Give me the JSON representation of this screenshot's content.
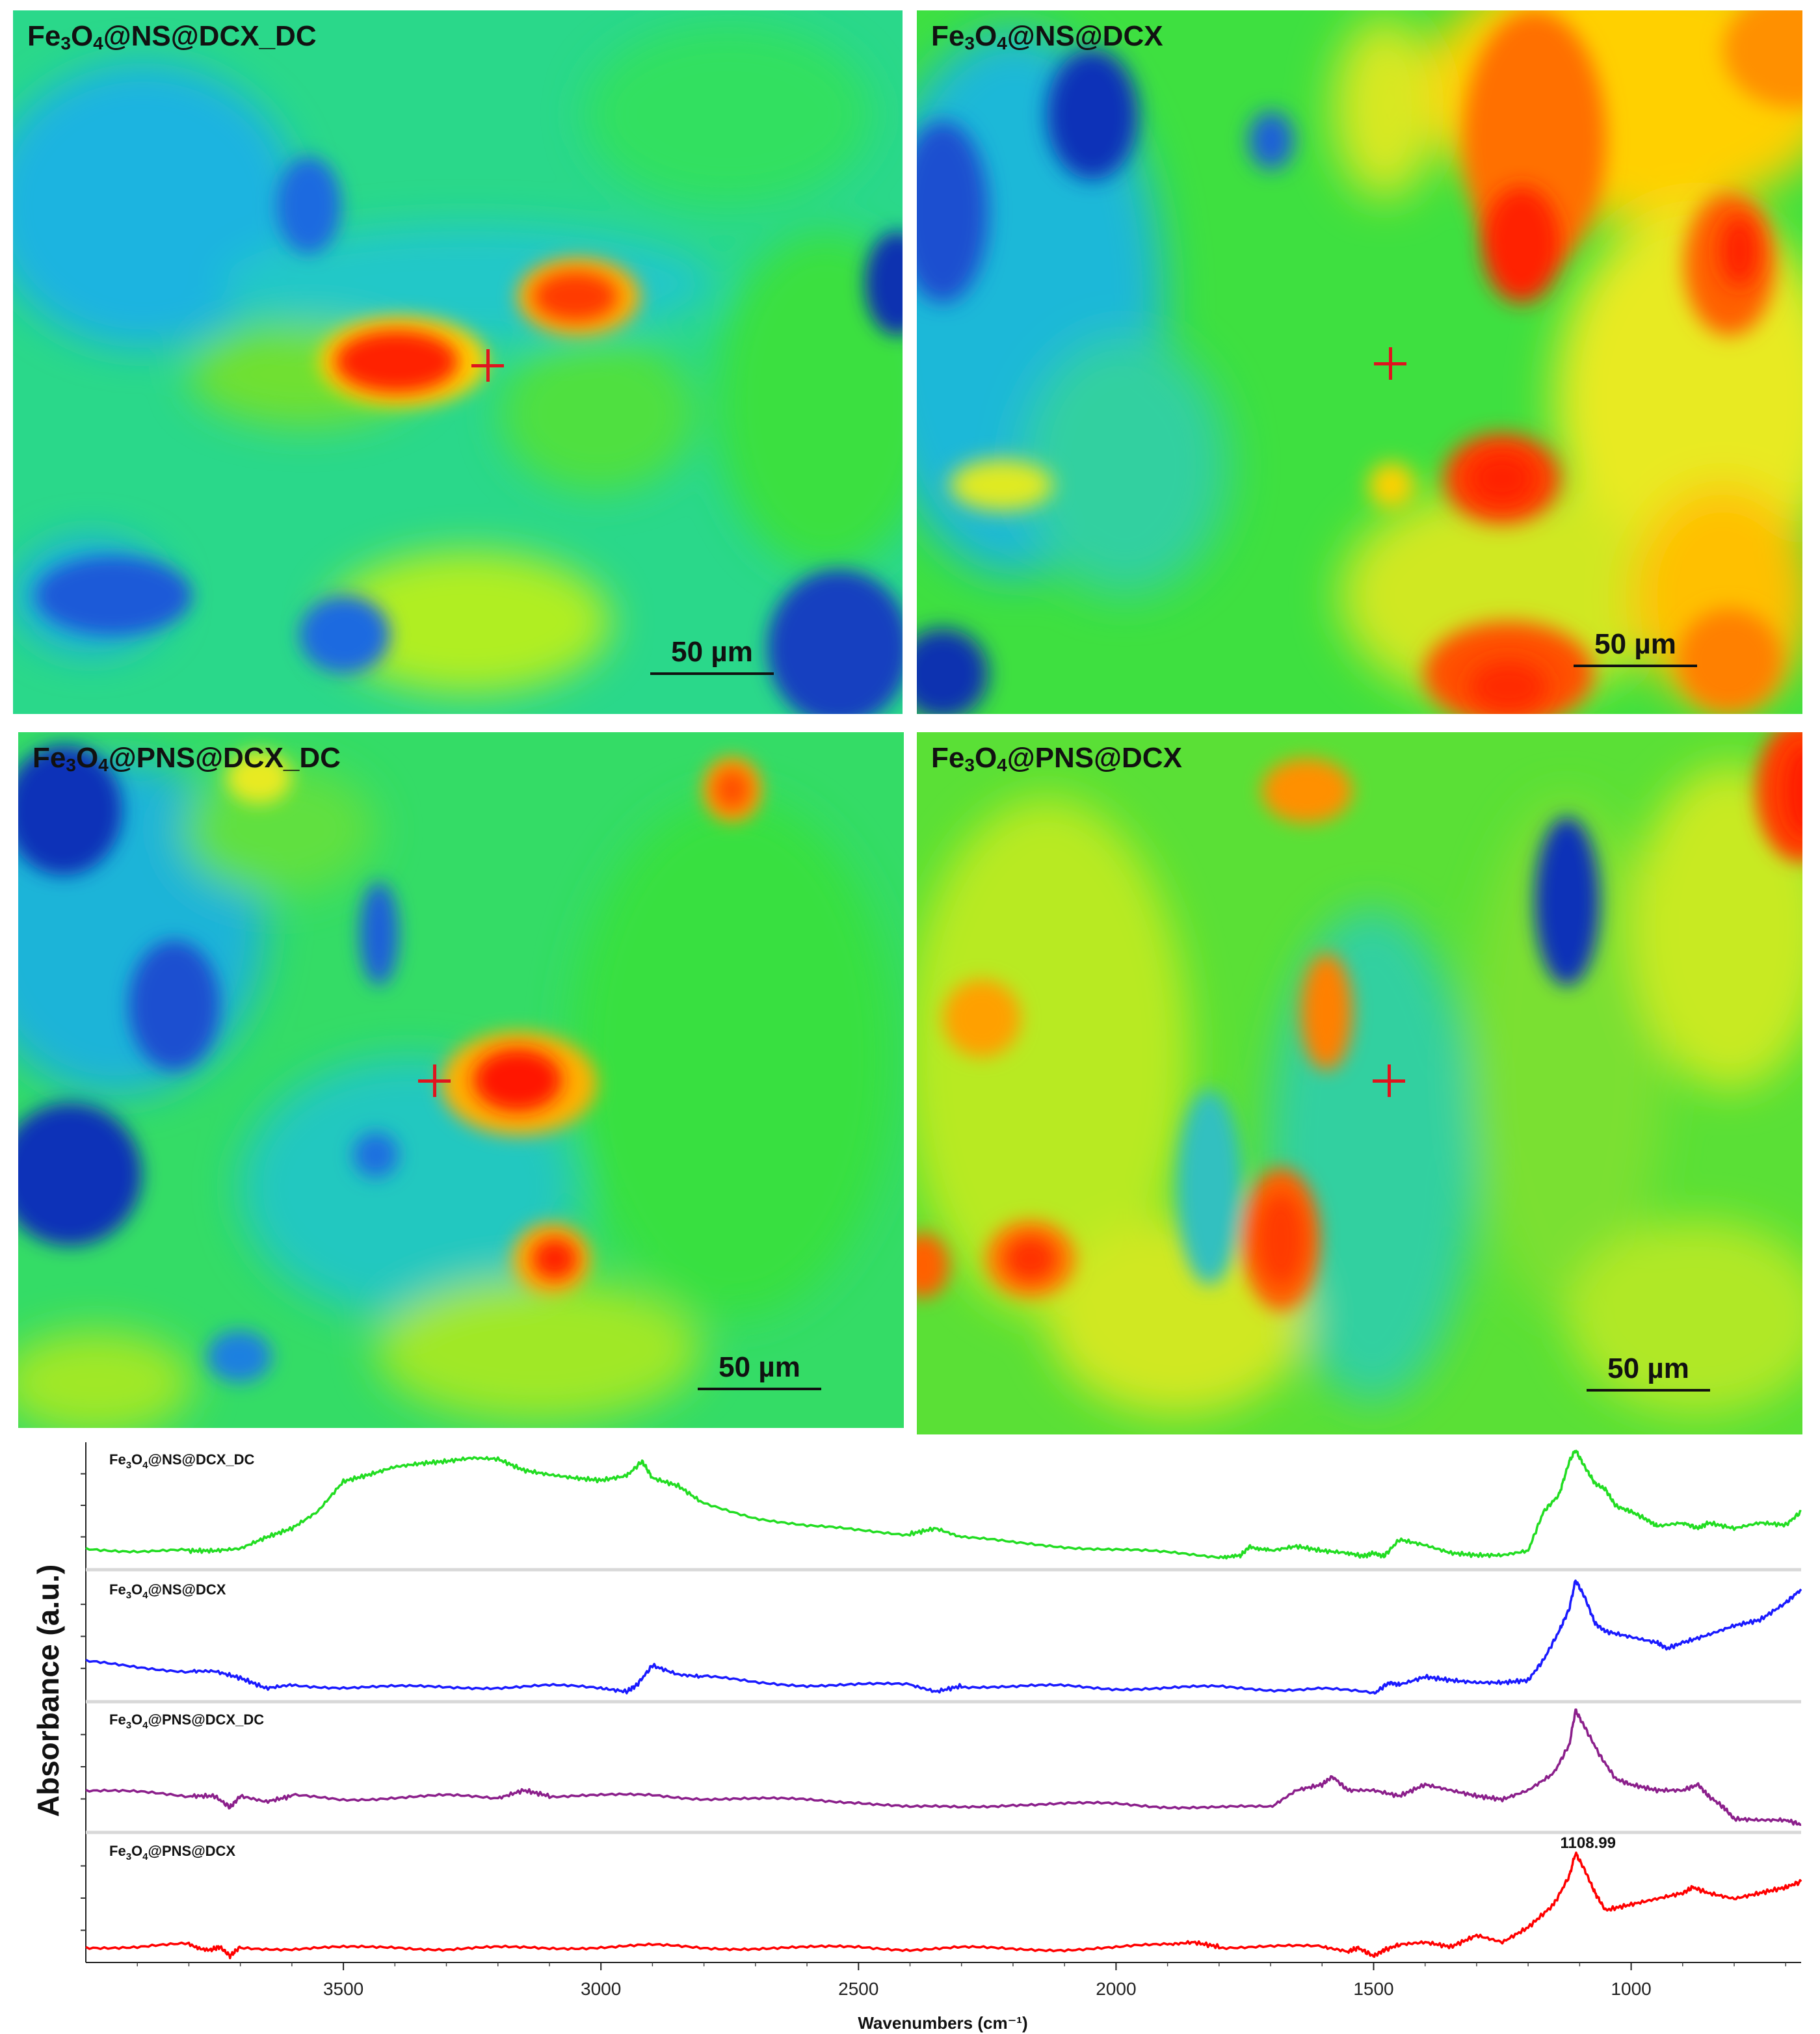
{
  "maps": [
    {
      "id": "tl",
      "label_main": "Fe",
      "label_sub1": "3",
      "label_mid": "O",
      "label_sub2": "4",
      "label_rest": "@NS@DCX_DC",
      "scale": "50 µm"
    },
    {
      "id": "tr",
      "label_main": "Fe",
      "label_sub1": "3",
      "label_mid": "O",
      "label_sub2": "4",
      "label_rest": "@NS@DCX",
      "scale": "50 µm"
    },
    {
      "id": "bl",
      "label_main": "Fe",
      "label_sub1": "3",
      "label_mid": "O",
      "label_sub2": "4",
      "label_rest": "@PNS@DCX_DC",
      "scale": "50 µm"
    },
    {
      "id": "br",
      "label_main": "Fe",
      "label_sub1": "3",
      "label_mid": "O",
      "label_sub2": "4",
      "label_rest": "@PNS@DCX",
      "scale": "50 µm"
    }
  ],
  "colors": {
    "green": "#22dd22",
    "blue": "#1a1aff",
    "purple": "#8b1f8b",
    "red": "#ff0000"
  },
  "chart_data": {
    "type": "line",
    "xlabel": "Wavenumbers (cm⁻¹)",
    "ylabel": "Absorbance (a.u.)",
    "xlim": [
      4000,
      670
    ],
    "xticks": [
      3500,
      3000,
      2500,
      2000,
      1500,
      1000
    ],
    "peak_annotation": {
      "label": "1108.99",
      "x": 1108.99,
      "series": 3
    },
    "series": [
      {
        "name": "Fe3O4@NS@DCX_DC",
        "name_main": "Fe",
        "name_sub1": "3",
        "name_mid": "O",
        "name_sub2": "4",
        "name_rest": "@NS@DCX_DC",
        "color": "#22dd22",
        "x": [
          4000,
          3900,
          3800,
          3750,
          3700,
          3650,
          3600,
          3550,
          3500,
          3450,
          3400,
          3350,
          3300,
          3250,
          3200,
          3150,
          3100,
          3050,
          3000,
          2950,
          2920,
          2900,
          2850,
          2800,
          2700,
          2600,
          2500,
          2400,
          2350,
          2300,
          2200,
          2100,
          2000,
          1900,
          1800,
          1760,
          1740,
          1700,
          1650,
          1600,
          1550,
          1520,
          1500,
          1480,
          1450,
          1400,
          1350,
          1300,
          1250,
          1200,
          1170,
          1140,
          1120,
          1108,
          1090,
          1070,
          1050,
          1030,
          1000,
          970,
          950,
          900,
          870,
          850,
          800,
          750,
          700,
          670
        ],
        "y": [
          0.12,
          0.1,
          0.1,
          0.1,
          0.12,
          0.22,
          0.3,
          0.45,
          0.72,
          0.78,
          0.85,
          0.88,
          0.9,
          0.93,
          0.92,
          0.82,
          0.78,
          0.75,
          0.73,
          0.77,
          0.9,
          0.75,
          0.68,
          0.52,
          0.4,
          0.32,
          0.28,
          0.25,
          0.3,
          0.22,
          0.17,
          0.14,
          0.11,
          0.08,
          0.05,
          0.05,
          0.14,
          0.1,
          0.14,
          0.1,
          0.08,
          0.05,
          0.08,
          0.05,
          0.2,
          0.15,
          0.08,
          0.06,
          0.06,
          0.1,
          0.45,
          0.6,
          0.9,
          1.0,
          0.85,
          0.7,
          0.65,
          0.5,
          0.45,
          0.38,
          0.32,
          0.35,
          0.3,
          0.35,
          0.3,
          0.35,
          0.33,
          0.45
        ]
      },
      {
        "name": "Fe3O4@NS@DCX",
        "name_main": "Fe",
        "name_sub1": "3",
        "name_mid": "O",
        "name_sub2": "4",
        "name_rest": "@NS@DCX",
        "color": "#1a1aff",
        "x": [
          4000,
          3900,
          3800,
          3750,
          3700,
          3650,
          3600,
          3500,
          3400,
          3300,
          3200,
          3100,
          3000,
          2950,
          2930,
          2900,
          2850,
          2800,
          2700,
          2600,
          2500,
          2400,
          2350,
          2300,
          2200,
          2100,
          2000,
          1900,
          1800,
          1700,
          1600,
          1500,
          1470,
          1450,
          1400,
          1350,
          1300,
          1250,
          1200,
          1170,
          1140,
          1120,
          1108,
          1090,
          1070,
          1050,
          1000,
          950,
          930,
          900,
          850,
          800,
          750,
          700,
          670
        ],
        "y": [
          0.28,
          0.24,
          0.2,
          0.2,
          0.14,
          0.05,
          0.08,
          0.06,
          0.06,
          0.06,
          0.06,
          0.07,
          0.05,
          0.02,
          0.08,
          0.25,
          0.17,
          0.15,
          0.1,
          0.08,
          0.08,
          0.08,
          0.02,
          0.07,
          0.06,
          0.07,
          0.05,
          0.05,
          0.06,
          0.04,
          0.05,
          0.0,
          0.1,
          0.08,
          0.15,
          0.12,
          0.1,
          0.1,
          0.12,
          0.3,
          0.55,
          0.75,
          1.0,
          0.85,
          0.62,
          0.55,
          0.5,
          0.45,
          0.4,
          0.45,
          0.52,
          0.6,
          0.65,
          0.8,
          0.92
        ]
      },
      {
        "name": "Fe3O4@PNS@DCX_DC",
        "name_main": "Fe",
        "name_sub1": "3",
        "name_mid": "O",
        "name_sub2": "4",
        "name_rest": "@PNS@DCX_DC",
        "color": "#8b1f8b",
        "x": [
          4000,
          3900,
          3800,
          3750,
          3720,
          3700,
          3650,
          3600,
          3500,
          3400,
          3300,
          3200,
          3150,
          3100,
          3000,
          2900,
          2800,
          2700,
          2600,
          2500,
          2400,
          2300,
          2200,
          2100,
          2000,
          1900,
          1800,
          1700,
          1650,
          1600,
          1580,
          1550,
          1500,
          1450,
          1400,
          1350,
          1300,
          1250,
          1200,
          1150,
          1120,
          1108,
          1090,
          1060,
          1030,
          1000,
          950,
          900,
          870,
          850,
          820,
          800,
          750,
          700,
          670
        ],
        "y": [
          0.3,
          0.28,
          0.25,
          0.25,
          0.15,
          0.25,
          0.2,
          0.25,
          0.22,
          0.24,
          0.25,
          0.23,
          0.3,
          0.25,
          0.25,
          0.26,
          0.23,
          0.22,
          0.22,
          0.2,
          0.15,
          0.15,
          0.18,
          0.18,
          0.18,
          0.16,
          0.15,
          0.15,
          0.3,
          0.35,
          0.42,
          0.3,
          0.3,
          0.25,
          0.35,
          0.3,
          0.25,
          0.22,
          0.3,
          0.45,
          0.7,
          1.0,
          0.85,
          0.6,
          0.4,
          0.35,
          0.3,
          0.3,
          0.35,
          0.25,
          0.15,
          0.05,
          0.04,
          0.04,
          0.0
        ]
      },
      {
        "name": "Fe3O4@PNS@DCX",
        "name_main": "Fe",
        "name_sub1": "3",
        "name_mid": "O",
        "name_sub2": "4",
        "name_rest": "@PNS@DCX",
        "color": "#ff0000",
        "x": [
          4000,
          3900,
          3800,
          3760,
          3740,
          3720,
          3700,
          3600,
          3500,
          3400,
          3300,
          3200,
          3100,
          3000,
          2900,
          2800,
          2700,
          2600,
          2500,
          2400,
          2300,
          2200,
          2100,
          2000,
          1900,
          1850,
          1800,
          1700,
          1600,
          1550,
          1530,
          1500,
          1480,
          1450,
          1400,
          1350,
          1300,
          1250,
          1200,
          1150,
          1120,
          1108,
          1090,
          1070,
          1050,
          1000,
          950,
          900,
          880,
          850,
          800,
          750,
          700,
          670
        ],
        "y": [
          0.08,
          0.08,
          0.1,
          0.05,
          0.08,
          0.0,
          0.08,
          0.06,
          0.07,
          0.08,
          0.06,
          0.07,
          0.07,
          0.08,
          0.09,
          0.07,
          0.07,
          0.07,
          0.08,
          0.06,
          0.07,
          0.06,
          0.06,
          0.07,
          0.1,
          0.12,
          0.08,
          0.08,
          0.08,
          0.04,
          0.07,
          0.0,
          0.05,
          0.1,
          0.12,
          0.08,
          0.18,
          0.12,
          0.25,
          0.45,
          0.7,
          0.9,
          0.75,
          0.55,
          0.4,
          0.45,
          0.5,
          0.55,
          0.6,
          0.55,
          0.5,
          0.55,
          0.6,
          0.65
        ]
      }
    ]
  }
}
